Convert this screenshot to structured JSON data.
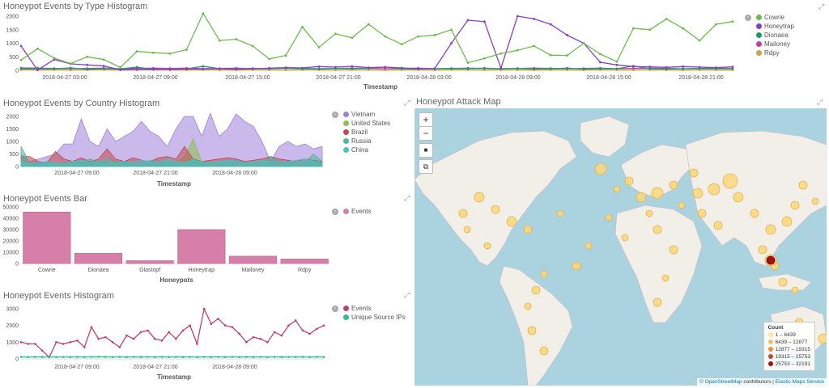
{
  "dashboard": {
    "panels": {
      "type_histogram": {
        "title": "Honeypot Events by Type Histogram",
        "xlabel": "Timestamp",
        "ticks_y": [
          "2000",
          "1500",
          "1000",
          "500",
          "0"
        ],
        "ticks_x": [
          "2018-04-27 03:00",
          "2018-04-27 09:00",
          "2018-04-27 15:00",
          "2018-04-27 21:00",
          "2018-04-28 03:00",
          "2018-04-28 09:00",
          "2018-04-28 15:00",
          "2018-04-28 21:00"
        ]
      },
      "country_histogram": {
        "title": "Honeypot Events by Country Histogram",
        "xlabel": "Timestamp",
        "ticks_y": [
          "2000",
          "1500",
          "1000",
          "500",
          "0"
        ],
        "ticks_x": [
          "2018-04-27 09:00",
          "2018-04-27 21:00",
          "2018-04-28 09:00"
        ]
      },
      "events_bar": {
        "title": "Honeypot Events Bar",
        "xlabel": "Honeypots",
        "ticks_y": [
          "50000",
          "40000",
          "30000",
          "20000",
          "10000",
          "0"
        ]
      },
      "events_histogram": {
        "title": "Honeypot Events Histogram",
        "xlabel": "Timestamp",
        "ticks_y": [
          "3000",
          "2000",
          "1000",
          "0"
        ],
        "ticks_x": [
          "2018-04-27 09:00",
          "2018-04-27 21:00",
          "2018-04-28 09:00"
        ]
      },
      "attack_map": {
        "title": "Honeypot Attack Map",
        "controls": {
          "zoom_in": "+",
          "zoom_out": "−",
          "draw": "■",
          "crop": "⧉"
        },
        "legend_title": "Count",
        "legend": [
          {
            "label": "1 – 6439",
            "color": "#fce79a"
          },
          {
            "label": "6439 – 12877",
            "color": "#f5c35a"
          },
          {
            "label": "12877 – 19315",
            "color": "#ef8d3a"
          },
          {
            "label": "19315 – 25753",
            "color": "#d6412f"
          },
          {
            "label": "25753 – 32191",
            "color": "#a50f15"
          }
        ],
        "attribution": {
          "osm": "© OpenStreetMap",
          "contributors": " contributors",
          "sep": " | ",
          "ems": "Elastic Maps Service"
        }
      }
    },
    "toggle_icon": "›",
    "expand_icon": "⤢"
  },
  "chart_data": [
    {
      "type": "line",
      "title": "Honeypot Events by Type Histogram",
      "xlabel": "Timestamp",
      "ylim": [
        0,
        2200
      ],
      "series": [
        {
          "name": "Cowrie",
          "color": "#6dbb4f",
          "values": [
            380,
            800,
            450,
            250,
            500,
            400,
            110,
            700,
            650,
            620,
            760,
            2100,
            1100,
            1150,
            900,
            420,
            550,
            1600,
            850,
            1350,
            1200,
            1700,
            1250,
            960,
            1250,
            1300,
            1500,
            280,
            440,
            620,
            740,
            900,
            560,
            550,
            1000,
            600,
            320,
            1550,
            1500,
            1900,
            1550,
            1100,
            1700,
            1800
          ]
        },
        {
          "name": "Honeytrap",
          "color": "#8a3fbf",
          "values": [
            900,
            10,
            400,
            240,
            200,
            160,
            20,
            30,
            40,
            30,
            50,
            50,
            60,
            40,
            60,
            80,
            100,
            90,
            140,
            120,
            150,
            100,
            120,
            90,
            60,
            70,
            1000,
            1850,
            1800,
            80,
            2000,
            1900,
            1700,
            1300,
            1000,
            300,
            200,
            140,
            130,
            110,
            140,
            120,
            100,
            130
          ]
        },
        {
          "name": "Dionaea",
          "color": "#1a9a6c",
          "values": [
            60,
            50,
            60,
            90,
            40,
            60,
            50,
            120,
            30,
            40,
            50,
            150,
            60,
            50,
            70,
            60,
            80,
            60,
            50,
            70,
            60,
            80,
            120,
            60,
            50,
            60,
            70,
            60,
            80,
            60,
            70,
            50,
            60,
            80,
            50,
            60,
            60,
            160,
            60,
            50,
            60,
            70,
            60,
            60
          ]
        },
        {
          "name": "Mailoney",
          "color": "#c13fa0",
          "values": [
            90,
            80,
            70,
            60,
            70,
            80,
            60,
            70,
            80,
            70,
            80,
            60,
            70,
            80,
            60,
            70,
            80,
            70,
            60,
            70,
            80,
            70,
            60,
            70,
            80,
            60,
            70,
            80,
            70,
            60,
            70,
            80,
            70,
            60,
            70,
            80,
            60,
            70,
            80,
            70,
            60,
            70,
            80,
            70
          ]
        },
        {
          "name": "Rdpy",
          "color": "#c8a34a",
          "values": [
            20,
            15,
            20,
            10,
            15,
            20,
            10,
            15,
            20,
            15,
            10,
            20,
            15,
            10,
            20,
            15,
            10,
            20,
            15,
            10,
            20,
            15,
            10,
            20,
            15,
            10,
            20,
            15,
            10,
            20,
            15,
            10,
            20,
            15,
            10,
            20,
            15,
            10,
            20,
            15,
            10,
            20,
            15,
            10
          ]
        }
      ]
    },
    {
      "type": "area",
      "title": "Honeypot Events by Country Histogram",
      "xlabel": "Timestamp",
      "ylim": [
        0,
        2200
      ],
      "series": [
        {
          "name": "Vietnam",
          "color": "#9e7fd9",
          "values": [
            500,
            200,
            300,
            400,
            500,
            900,
            900,
            1900,
            1000,
            800,
            1500,
            1000,
            1200,
            1400,
            1800,
            1400,
            1200,
            800,
            1500,
            2000,
            2000,
            1200,
            2200,
            1200,
            1500,
            2100,
            1800,
            1600,
            1000,
            200,
            800,
            1000,
            800,
            900,
            700,
            800
          ]
        },
        {
          "name": "United States",
          "color": "#8fc04f",
          "values": [
            80,
            100,
            120,
            200,
            150,
            100,
            200,
            150,
            100,
            150,
            300,
            200,
            100,
            150,
            100,
            80,
            100,
            200,
            100,
            400,
            1100,
            200,
            100,
            80,
            100,
            150,
            100,
            80,
            100,
            150,
            200,
            100,
            80,
            100,
            150,
            100
          ]
        },
        {
          "name": "Brazil",
          "color": "#c0484a",
          "values": [
            400,
            400,
            200,
            150,
            600,
            300,
            200,
            350,
            200,
            300,
            700,
            300,
            200,
            350,
            250,
            200,
            350,
            400,
            300,
            800,
            300,
            200,
            250,
            300,
            350,
            300,
            200,
            250,
            300,
            400,
            300,
            250,
            200,
            300,
            250,
            200
          ]
        },
        {
          "name": "Russia",
          "color": "#4fb59a",
          "values": [
            800,
            150,
            100,
            150,
            100,
            150,
            200,
            150,
            300,
            150,
            100,
            150,
            200,
            150,
            100,
            250,
            150,
            200,
            100,
            150,
            300,
            150,
            100,
            150,
            200,
            250,
            150,
            100,
            150,
            400,
            200,
            150,
            100,
            150,
            500,
            200
          ]
        },
        {
          "name": "China",
          "color": "#47c2c9",
          "values": [
            200,
            100,
            150,
            200,
            150,
            100,
            200,
            250,
            150,
            200,
            300,
            150,
            200,
            150,
            250,
            200,
            150,
            300,
            200,
            150,
            250,
            200,
            150,
            200,
            250,
            200,
            150,
            200,
            250,
            200,
            150,
            200,
            250,
            300,
            200,
            150
          ]
        }
      ]
    },
    {
      "type": "bar",
      "title": "Honeypot Events Bar",
      "xlabel": "Honeypots",
      "ylim": [
        0,
        50000
      ],
      "categories": [
        "Cowrie",
        "Dionaea",
        "Glastopf",
        "Honeytrap",
        "Mailoney",
        "Rdpy"
      ],
      "series": [
        {
          "name": "Events",
          "color": "#d67fa8",
          "values": [
            45500,
            9000,
            2500,
            30000,
            6500,
            4000
          ]
        }
      ]
    },
    {
      "type": "line",
      "title": "Honeypot Events Histogram",
      "xlabel": "Timestamp",
      "ylim": [
        0,
        3200
      ],
      "series": [
        {
          "name": "Events",
          "color": "#c13f6c",
          "values": [
            1000,
            900,
            900,
            500,
            100,
            1000,
            900,
            1000,
            1100,
            700,
            1900,
            1200,
            1300,
            1000,
            700,
            1400,
            1200,
            1600,
            1700,
            1200,
            1100,
            1600,
            1200,
            1700,
            2000,
            900,
            3000,
            2100,
            2400,
            2000,
            1900,
            1500,
            1000,
            1300,
            1200,
            1000,
            1600,
            1400,
            2000,
            2300,
            1700,
            1500,
            1800,
            2000
          ]
        },
        {
          "name": "Unique Source IPs",
          "color": "#2ebf8f",
          "values": [
            120,
            110,
            120,
            110,
            120,
            110,
            120,
            110,
            120,
            110,
            120,
            130,
            120,
            110,
            120,
            110,
            120,
            110,
            120,
            110,
            120,
            110,
            120,
            110,
            120,
            110,
            120,
            110,
            120,
            110,
            120,
            110,
            120,
            110,
            120,
            110,
            120,
            110,
            120,
            110,
            120,
            110,
            120,
            110
          ]
        }
      ]
    }
  ]
}
